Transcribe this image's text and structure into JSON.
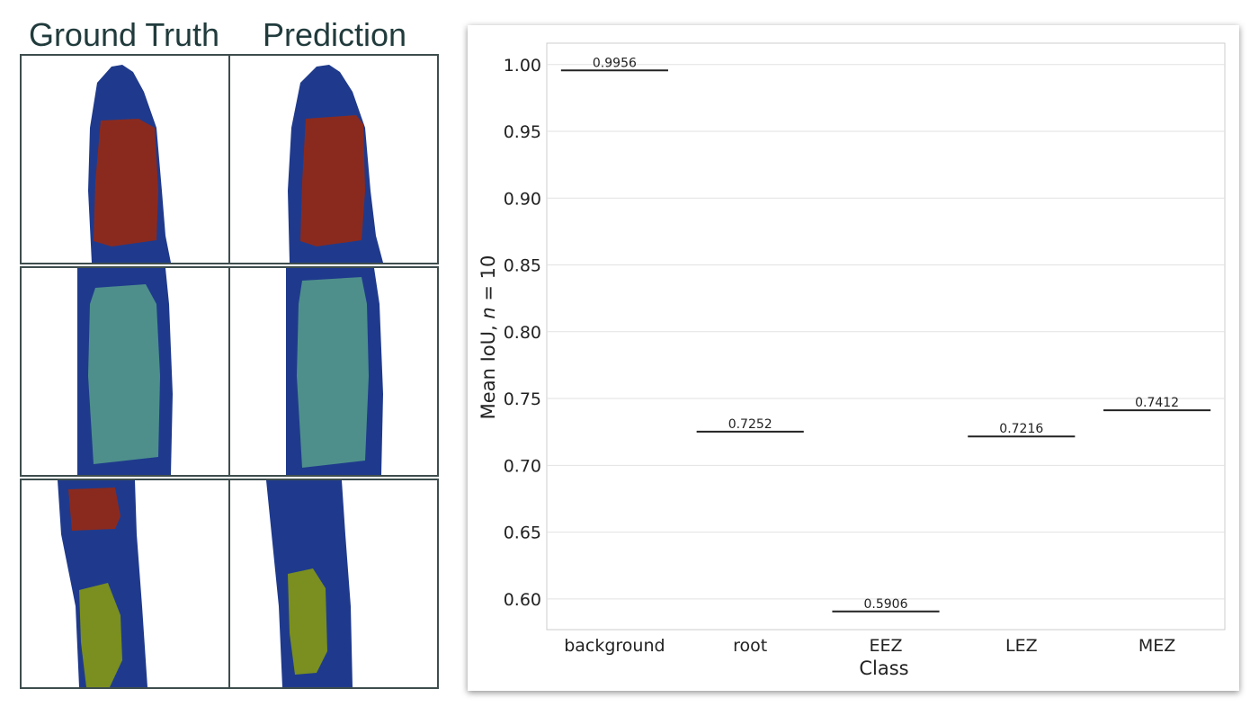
{
  "figure": {
    "header_ground_truth": "Ground Truth",
    "header_prediction": "Prediction"
  },
  "chart_data": {
    "type": "bar",
    "mark": "horizontal line at mean value",
    "xlabel": "Class",
    "ylabel_prefix": "Mean IoU, ",
    "ylabel_var": "n",
    "ylabel_suffix": " = 10",
    "categories": [
      "background",
      "root",
      "EEZ",
      "LEZ",
      "MEZ"
    ],
    "values": [
      0.9956,
      0.7252,
      0.5906,
      0.7216,
      0.7412
    ],
    "value_labels": [
      "0.9956",
      "0.7252",
      "0.5906",
      "0.7216",
      "0.7412"
    ],
    "yticks": [
      "0.60",
      "0.65",
      "0.70",
      "0.75",
      "0.80",
      "0.85",
      "0.90",
      "0.95",
      "1.00"
    ],
    "ylim": [
      0.577,
      1.016
    ],
    "grid": true,
    "colors": {
      "grid": "#e2e2e2",
      "mark": "#222222",
      "axes": "#cccccc"
    }
  },
  "segmentation_colors": {
    "root": "#1f3a8c",
    "meristem": "#8a2a1f",
    "elongation": "#4e8f8c",
    "lateral": "#7a8f1f"
  }
}
